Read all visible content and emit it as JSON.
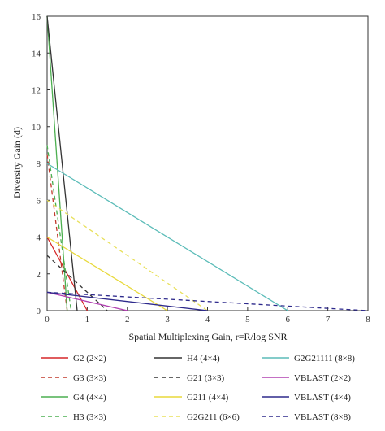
{
  "chart_data": {
    "type": "line",
    "title": "",
    "xlabel": "Spatial Multiplexing Gain, r=R/log SNR",
    "ylabel": "Diversity Gain (d)",
    "xlim": [
      0,
      8
    ],
    "ylim": [
      0,
      16
    ],
    "xticks": [
      0,
      1,
      2,
      3,
      4,
      5,
      6,
      7,
      8
    ],
    "yticks": [
      0,
      2,
      4,
      6,
      8,
      10,
      12,
      14,
      16
    ],
    "grid": false,
    "legend_position": "bottom",
    "series": [
      {
        "name": "G2 (2×2)",
        "color": "#d62728",
        "dash": "solid",
        "x": [
          0,
          1
        ],
        "y": [
          4,
          0
        ]
      },
      {
        "name": "G3 (3×3)",
        "color": "#c0392b",
        "dash": "dashed",
        "x": [
          0,
          0.5
        ],
        "y": [
          8.5,
          0
        ]
      },
      {
        "name": "G4 (4×4)",
        "color": "#4caf50",
        "dash": "solid",
        "x": [
          0,
          0.5
        ],
        "y": [
          16,
          0
        ]
      },
      {
        "name": "H3 (3×3)",
        "color": "#4caf50",
        "dash": "dashed",
        "x": [
          0,
          0.6
        ],
        "y": [
          9,
          0
        ]
      },
      {
        "name": "H4 (4×4)",
        "color": "#333333",
        "dash": "solid",
        "x": [
          0,
          0.75
        ],
        "y": [
          16,
          0
        ]
      },
      {
        "name": "G21 (3×3)",
        "color": "#333333",
        "dash": "dashed",
        "x": [
          0,
          1.5
        ],
        "y": [
          3,
          0
        ]
      },
      {
        "name": "G211 (4×4)",
        "color": "#e8d93a",
        "dash": "solid",
        "x": [
          0,
          3
        ],
        "y": [
          4,
          0
        ]
      },
      {
        "name": "G2G211 (6×6)",
        "color": "#e8e05a",
        "dash": "dashed",
        "x": [
          0,
          4
        ],
        "y": [
          6,
          0
        ]
      },
      {
        "name": "G2G21111 (8×8)",
        "color": "#5bbcb8",
        "dash": "solid",
        "x": [
          0,
          6
        ],
        "y": [
          8,
          0
        ]
      },
      {
        "name": "VBLAST (2×2)",
        "color": "#b040b0",
        "dash": "solid",
        "x": [
          0,
          2
        ],
        "y": [
          1,
          0
        ]
      },
      {
        "name": "VBLAST (4×4)",
        "color": "#2e2a8c",
        "dash": "solid",
        "x": [
          0,
          4
        ],
        "y": [
          1,
          0
        ]
      },
      {
        "name": "VBLAST (8×8)",
        "color": "#2e2a8c",
        "dash": "dashed",
        "x": [
          0,
          8
        ],
        "y": [
          1,
          0
        ]
      }
    ]
  }
}
